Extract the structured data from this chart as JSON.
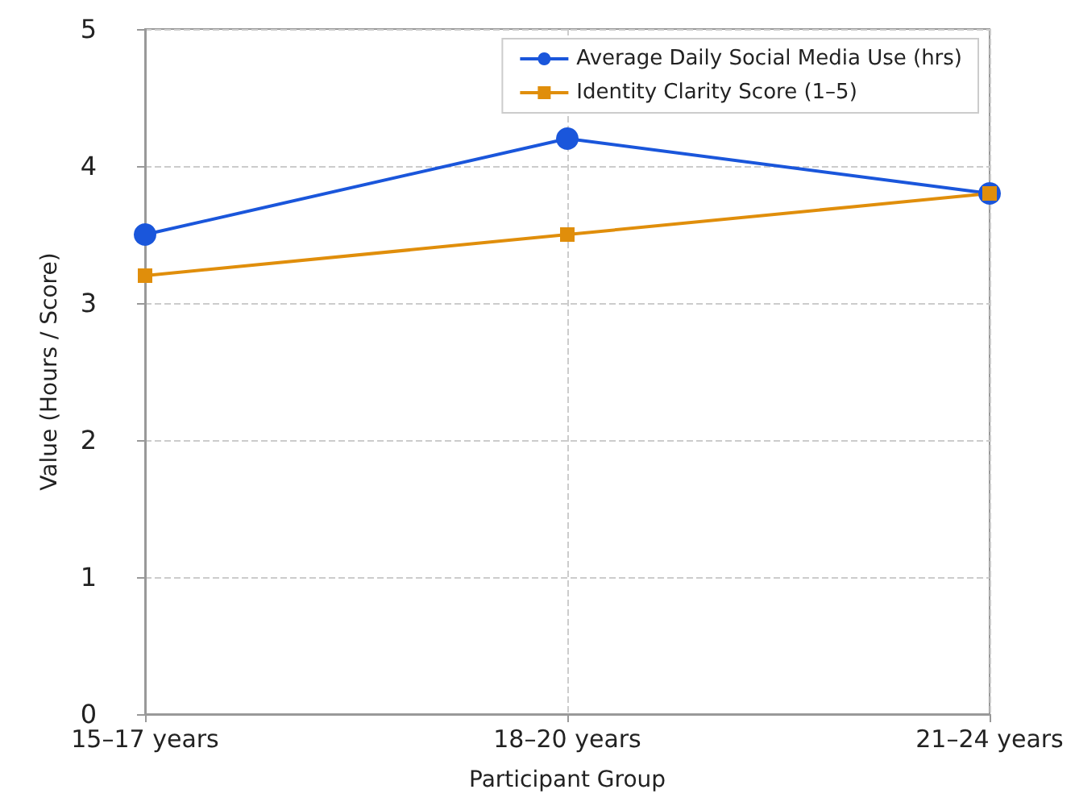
{
  "chart_data": {
    "type": "line",
    "xlabel": "Participant Group",
    "ylabel": "Value (Hours / Score)",
    "categories": [
      "15–17 years",
      "18–20 years",
      "21–24 years"
    ],
    "series": [
      {
        "name": "Average Daily Social Media Use (hrs)",
        "color": "#1a56db",
        "marker": "circle",
        "values": [
          3.5,
          4.2,
          3.8
        ]
      },
      {
        "name": "Identity Clarity Score (1–5)",
        "color": "#e08e0b",
        "marker": "square",
        "values": [
          3.2,
          3.5,
          3.8
        ]
      }
    ],
    "ylim": [
      0,
      5
    ],
    "yticks": [
      0,
      1,
      2,
      3,
      4,
      5
    ],
    "grid": true,
    "legend": "top right",
    "line_style": "solid"
  }
}
